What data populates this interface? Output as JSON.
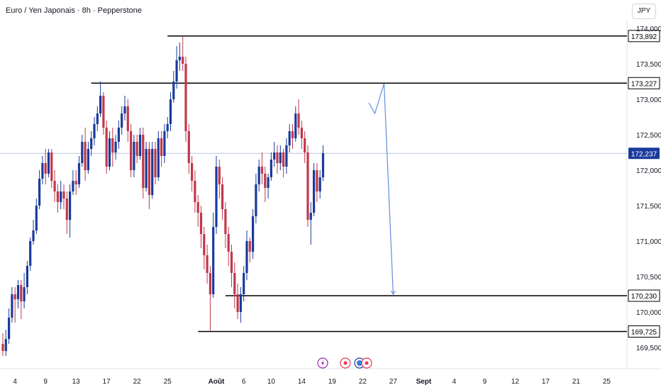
{
  "header": {
    "title": "Euro / Yen Japonais · 8h · Pepperstone",
    "currency_button": "JPY"
  },
  "colors": {
    "up": "#1a3a9c",
    "down": "#c2374a",
    "level_line": "#000000",
    "drawing": "#5b8fe0",
    "current_price_line": "#b8c4dc",
    "current_price_tag": "#1a3a9c",
    "axis_text": "#131722"
  },
  "chart_data": {
    "type": "candlestick",
    "symbol": "EURJPY",
    "timeframe": "8h",
    "ylim": [
      169.35,
      174.1
    ],
    "y_ticks": [
      {
        "value": 174.0,
        "label": "174,000"
      },
      {
        "value": 173.5,
        "label": "173,500"
      },
      {
        "value": 173.0,
        "label": "173,000"
      },
      {
        "value": 172.5,
        "label": "172,500"
      },
      {
        "value": 172.0,
        "label": "172,000"
      },
      {
        "value": 171.5,
        "label": "171,500"
      },
      {
        "value": 171.0,
        "label": "171,000"
      },
      {
        "value": 170.5,
        "label": "170,500"
      },
      {
        "value": 170.0,
        "label": "170,000"
      },
      {
        "value": 169.5,
        "label": "169,500"
      }
    ],
    "x_ticks": [
      {
        "i": 4,
        "label": "4"
      },
      {
        "i": 14,
        "label": "9"
      },
      {
        "i": 24,
        "label": "13"
      },
      {
        "i": 34,
        "label": "17"
      },
      {
        "i": 44,
        "label": "22"
      },
      {
        "i": 54,
        "label": "25"
      },
      {
        "i": 70,
        "label": "Août"
      },
      {
        "i": 79,
        "label": "6"
      },
      {
        "i": 88,
        "label": "10"
      },
      {
        "i": 98,
        "label": "14"
      },
      {
        "i": 108,
        "label": "19"
      },
      {
        "i": 118,
        "label": "22"
      },
      {
        "i": 128,
        "label": "27"
      },
      {
        "i": 138,
        "label": "Sept"
      },
      {
        "i": 148,
        "label": "4"
      },
      {
        "i": 158,
        "label": "9"
      },
      {
        "i": 168,
        "label": "12"
      },
      {
        "i": 178,
        "label": "17"
      },
      {
        "i": 188,
        "label": "21"
      },
      {
        "i": 198,
        "label": "25"
      }
    ],
    "levels": [
      {
        "price": 173.892,
        "label": "173,892",
        "from_i": 54
      },
      {
        "price": 173.227,
        "label": "173,227",
        "from_i": 29
      },
      {
        "price": 170.23,
        "label": "170,230",
        "from_i": 73
      },
      {
        "price": 169.725,
        "label": "169,725",
        "from_i": 64
      }
    ],
    "current_price": {
      "price": 172.237,
      "label": "172,237"
    },
    "projection": [
      {
        "i": 120,
        "price": 172.95
      },
      {
        "i": 122,
        "price": 172.8
      },
      {
        "i": 125,
        "price": 173.22
      },
      {
        "i": 128,
        "price": 170.25
      }
    ],
    "event_markers": [
      "lightning-event",
      "red-event",
      "blue-event",
      "red-event"
    ],
    "candles": [
      [
        169.55,
        169.45,
        169.38,
        169.7
      ],
      [
        169.45,
        169.62,
        169.38,
        169.75
      ],
      [
        169.62,
        169.92,
        169.55,
        170.05
      ],
      [
        169.92,
        170.25,
        169.85,
        170.35
      ],
      [
        170.25,
        170.18,
        169.85,
        170.35
      ],
      [
        170.18,
        170.38,
        170.05,
        170.45
      ],
      [
        170.38,
        170.15,
        169.9,
        170.45
      ],
      [
        170.15,
        170.35,
        170.05,
        170.55
      ],
      [
        170.35,
        170.65,
        170.25,
        170.72
      ],
      [
        170.65,
        171.0,
        170.58,
        171.05
      ],
      [
        171.0,
        171.15,
        170.95,
        171.3
      ],
      [
        171.15,
        171.5,
        171.1,
        171.6
      ],
      [
        171.5,
        171.88,
        171.45,
        172.0
      ],
      [
        171.88,
        172.1,
        171.8,
        172.2
      ],
      [
        172.1,
        171.95,
        171.8,
        172.3
      ],
      [
        171.95,
        172.25,
        171.9,
        172.3
      ],
      [
        172.25,
        171.85,
        171.75,
        172.3
      ],
      [
        171.85,
        171.7,
        171.55,
        172.0
      ],
      [
        171.7,
        171.55,
        171.4,
        171.8
      ],
      [
        171.55,
        171.7,
        171.45,
        171.85
      ],
      [
        171.7,
        171.6,
        171.45,
        171.8
      ],
      [
        171.6,
        171.3,
        171.1,
        171.7
      ],
      [
        171.3,
        171.7,
        171.05,
        171.8
      ],
      [
        171.7,
        171.85,
        171.65,
        172.0
      ],
      [
        171.85,
        171.8,
        171.65,
        172.0
      ],
      [
        171.8,
        172.1,
        171.75,
        172.2
      ],
      [
        172.1,
        172.4,
        172.05,
        172.5
      ],
      [
        172.4,
        172.0,
        171.85,
        172.6
      ],
      [
        172.0,
        172.3,
        171.95,
        172.4
      ],
      [
        172.3,
        172.45,
        172.2,
        172.55
      ],
      [
        172.45,
        172.65,
        172.35,
        172.75
      ],
      [
        172.65,
        172.8,
        172.55,
        172.9
      ],
      [
        172.8,
        173.05,
        172.75,
        173.25
      ],
      [
        173.05,
        172.6,
        172.5,
        173.1
      ],
      [
        172.6,
        172.05,
        171.95,
        172.7
      ],
      [
        172.05,
        172.45,
        172.0,
        172.55
      ],
      [
        172.45,
        172.25,
        172.05,
        172.6
      ],
      [
        172.25,
        172.4,
        172.15,
        172.5
      ],
      [
        172.4,
        172.6,
        172.3,
        172.7
      ],
      [
        172.6,
        172.8,
        172.5,
        172.9
      ],
      [
        172.8,
        172.9,
        172.7,
        173.05
      ],
      [
        172.9,
        172.55,
        172.4,
        173.0
      ],
      [
        172.55,
        172.0,
        171.9,
        172.65
      ],
      [
        172.0,
        172.4,
        171.9,
        172.5
      ],
      [
        172.4,
        172.2,
        172.1,
        172.5
      ],
      [
        172.2,
        172.5,
        172.15,
        172.6
      ],
      [
        172.5,
        171.75,
        171.6,
        172.6
      ],
      [
        171.75,
        172.3,
        171.7,
        172.4
      ],
      [
        172.3,
        171.65,
        171.45,
        172.4
      ],
      [
        171.65,
        172.3,
        171.6,
        172.4
      ],
      [
        172.3,
        171.9,
        171.8,
        172.4
      ],
      [
        171.9,
        172.45,
        171.85,
        172.55
      ],
      [
        172.45,
        172.2,
        172.05,
        172.55
      ],
      [
        172.2,
        172.55,
        172.1,
        172.65
      ],
      [
        172.55,
        172.65,
        172.45,
        172.75
      ],
      [
        172.65,
        173.0,
        172.55,
        173.1
      ],
      [
        173.0,
        173.25,
        172.95,
        173.4
      ],
      [
        173.25,
        173.55,
        173.15,
        173.75
      ],
      [
        173.55,
        173.6,
        173.4,
        173.8
      ],
      [
        173.6,
        173.5,
        173.4,
        173.89
      ],
      [
        173.5,
        172.55,
        172.4,
        173.6
      ],
      [
        172.55,
        172.1,
        171.95,
        172.65
      ],
      [
        172.1,
        171.85,
        171.7,
        172.2
      ],
      [
        171.85,
        171.55,
        171.4,
        172.0
      ],
      [
        171.55,
        171.4,
        171.2,
        171.65
      ],
      [
        171.4,
        171.1,
        170.9,
        171.5
      ],
      [
        171.1,
        170.8,
        170.6,
        171.2
      ],
      [
        170.8,
        170.55,
        170.4,
        170.95
      ],
      [
        170.55,
        170.25,
        169.73,
        170.65
      ],
      [
        170.25,
        171.2,
        170.2,
        171.4
      ],
      [
        171.2,
        172.05,
        171.1,
        172.2
      ],
      [
        172.05,
        171.8,
        171.6,
        172.15
      ],
      [
        171.8,
        171.45,
        171.3,
        171.9
      ],
      [
        171.45,
        171.1,
        170.9,
        171.55
      ],
      [
        171.1,
        170.85,
        170.65,
        171.2
      ],
      [
        170.85,
        170.55,
        170.35,
        170.95
      ],
      [
        170.55,
        170.25,
        170.05,
        170.7
      ],
      [
        170.25,
        170.0,
        169.9,
        170.4
      ],
      [
        170.0,
        170.25,
        169.85,
        170.35
      ],
      [
        170.25,
        170.55,
        170.15,
        170.65
      ],
      [
        170.55,
        171.0,
        170.45,
        171.15
      ],
      [
        171.0,
        170.85,
        170.7,
        171.05
      ],
      [
        170.85,
        171.35,
        170.75,
        171.45
      ],
      [
        171.35,
        171.8,
        171.25,
        171.95
      ],
      [
        171.8,
        172.05,
        171.7,
        172.15
      ],
      [
        172.05,
        171.95,
        171.8,
        172.25
      ],
      [
        171.95,
        171.75,
        171.55,
        172.05
      ],
      [
        171.75,
        171.9,
        171.6,
        171.95
      ],
      [
        171.9,
        172.15,
        171.85,
        172.25
      ],
      [
        172.15,
        172.25,
        172.05,
        172.4
      ],
      [
        172.25,
        172.1,
        171.95,
        172.35
      ],
      [
        172.1,
        172.25,
        172.0,
        172.35
      ],
      [
        172.25,
        172.05,
        171.9,
        172.3
      ],
      [
        172.05,
        172.35,
        171.95,
        172.45
      ],
      [
        172.35,
        172.55,
        172.25,
        172.65
      ],
      [
        172.55,
        172.45,
        172.3,
        172.65
      ],
      [
        172.45,
        172.8,
        172.4,
        172.9
      ],
      [
        172.8,
        172.6,
        172.5,
        173.0
      ],
      [
        172.6,
        172.45,
        172.3,
        172.7
      ],
      [
        172.45,
        172.25,
        172.1,
        172.55
      ],
      [
        172.25,
        171.3,
        171.2,
        172.35
      ],
      [
        171.3,
        171.4,
        170.95,
        171.55
      ],
      [
        171.4,
        172.0,
        171.35,
        172.1
      ],
      [
        172.0,
        171.7,
        171.55,
        172.1
      ],
      [
        171.7,
        171.9,
        171.6,
        172.0
      ],
      [
        171.9,
        172.24,
        171.85,
        172.35
      ]
    ]
  }
}
